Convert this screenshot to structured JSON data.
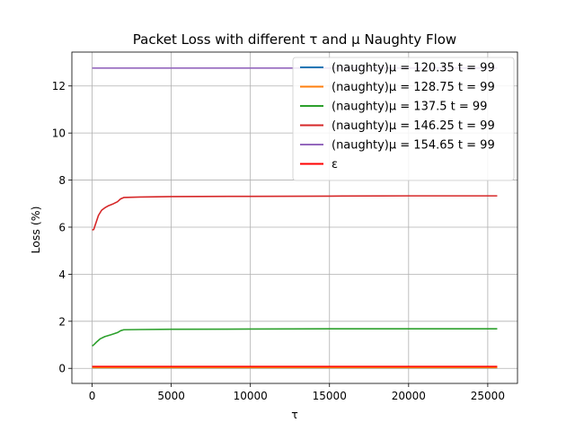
{
  "chart_data": {
    "type": "line",
    "title": "Packet Loss with different τ and μ Naughty Flow",
    "xlabel": "τ",
    "ylabel": "Loss (%)",
    "xlim": [
      -1280,
      26880
    ],
    "ylim": [
      -0.64,
      13.44
    ],
    "xticks": [
      0,
      5000,
      10000,
      15000,
      20000,
      25000
    ],
    "xtick_labels": [
      "0",
      "5000",
      "10000",
      "15000",
      "20000",
      "25000"
    ],
    "yticks": [
      0,
      2,
      4,
      6,
      8,
      10,
      12
    ],
    "ytick_labels": [
      "0",
      "2",
      "4",
      "6",
      "8",
      "10",
      "12"
    ],
    "grid": true,
    "legend_position": "top-right",
    "series": [
      {
        "name": "(naughty)μ = 120.35 t = 99",
        "color": "#1f77b4",
        "x": [
          0,
          25600
        ],
        "y": [
          0.02,
          0.02
        ]
      },
      {
        "name": "(naughty)μ = 128.75 t = 99",
        "color": "#ff7f0e",
        "x": [
          0,
          25600
        ],
        "y": [
          0.03,
          0.03
        ]
      },
      {
        "name": "(naughty)μ = 137.5 t = 99",
        "color": "#2ca02c",
        "x": [
          0,
          100,
          250,
          500,
          800,
          1200,
          1600,
          1800,
          2000,
          3000,
          5000,
          10000,
          15000,
          20000,
          25600
        ],
        "y": [
          0.95,
          1.0,
          1.1,
          1.25,
          1.35,
          1.43,
          1.52,
          1.6,
          1.64,
          1.65,
          1.66,
          1.67,
          1.68,
          1.68,
          1.68
        ]
      },
      {
        "name": "(naughty)μ = 146.25 t = 99",
        "color": "#d62728",
        "x": [
          0,
          100,
          200,
          400,
          600,
          800,
          1000,
          1300,
          1600,
          1800,
          2000,
          3000,
          5000,
          10000,
          15000,
          20000,
          25600
        ],
        "y": [
          5.88,
          5.9,
          6.1,
          6.5,
          6.72,
          6.82,
          6.9,
          6.98,
          7.08,
          7.2,
          7.26,
          7.28,
          7.3,
          7.31,
          7.32,
          7.33,
          7.33
        ]
      },
      {
        "name": "(naughty)μ = 154.65 t = 99",
        "color": "#9467bd",
        "x": [
          0,
          25600
        ],
        "y": [
          12.76,
          12.76
        ]
      },
      {
        "name": "ε",
        "color": "#ff0000",
        "x": [
          0,
          25600
        ],
        "y": [
          0.08,
          0.08
        ]
      }
    ]
  }
}
